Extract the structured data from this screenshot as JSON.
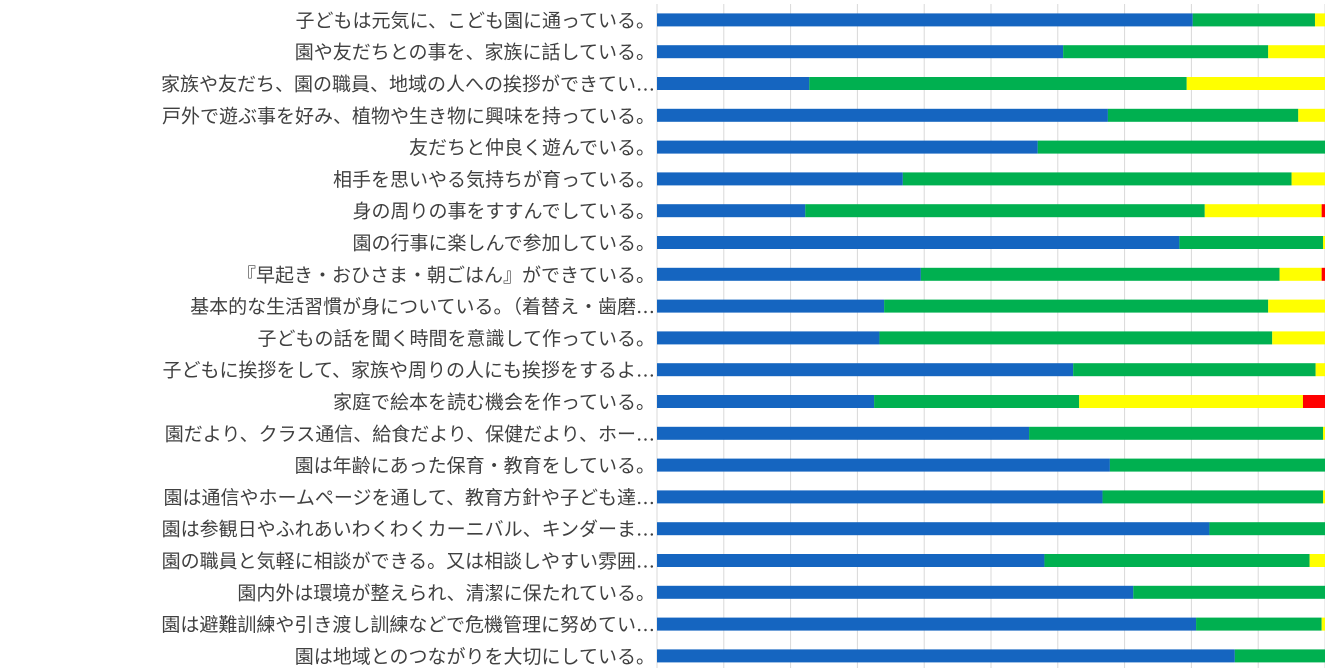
{
  "chart_data": {
    "type": "bar",
    "stacked": true,
    "orientation": "horizontal",
    "xlim": [
      0,
      100
    ],
    "grid": true,
    "legend": "none",
    "categories": [
      "子どもは元気に、こども園に通っている。",
      "園や友だちとの事を、家族に話している。",
      "家族や友だち、園の職員、地域の人への挨拶ができてい…",
      "戸外で遊ぶ事を好み、植物や生き物に興味を持っている。",
      "友だちと仲良く遊んでいる。",
      "相手を思いやる気持ちが育っている。",
      "身の周りの事をすすんでしている。",
      "園の行事に楽しんで参加している。",
      "『早起き・おひさま・朝ごはん』ができている。",
      "基本的な生活習慣が身についている。（着替え・歯磨…",
      "子どもの話を聞く時間を意識して作っている。",
      "子どもに挨拶をして、家族や周りの人にも挨拶をするよ…",
      "家庭で絵本を読む機会を作っている。",
      "園だより、クラス通信、給食だより、保健だより、ホー…",
      "園は年齢にあった保育・教育をしている。",
      "園は通信やホームページを通して、教育方針や子ども達…",
      "園は参観日やふれあいわくわくカーニバル、キンダーま…",
      "園の職員と気軽に相談ができる。又は相談しやすい雰囲…",
      "園内外は環境が整えられ、清潔に保たれている。",
      "園は避難訓練や引き渡し訓練などで危機管理に努めてい…",
      "園は地域とのつながりを大切にしている。"
    ],
    "series": [
      {
        "color": "#1565c0",
        "values": [
          80.2,
          60.8,
          22.8,
          67.5,
          57.0,
          36.8,
          22.2,
          78.2,
          39.5,
          34.0,
          33.3,
          62.3,
          32.5,
          55.7,
          67.8,
          66.7,
          82.7,
          58.0,
          71.3,
          80.7,
          86.5
        ]
      },
      {
        "color": "#00b050",
        "values": [
          18.3,
          30.7,
          56.5,
          28.5,
          43.0,
          58.2,
          59.8,
          21.5,
          53.7,
          57.5,
          58.8,
          36.3,
          30.7,
          44.0,
          32.2,
          33.0,
          17.3,
          39.7,
          28.7,
          18.8,
          13.5
        ]
      },
      {
        "color": "#ffff00",
        "values": [
          1.5,
          8.5,
          20.7,
          4.0,
          0,
          5.0,
          17.5,
          0.3,
          6.3,
          8.5,
          7.9,
          1.4,
          33.5,
          0.3,
          0,
          0.3,
          0,
          2.3,
          0,
          0.5,
          0
        ]
      },
      {
        "color": "#ff0000",
        "values": [
          0,
          0,
          0,
          0,
          0,
          0,
          0.5,
          0,
          0.5,
          0,
          0,
          0,
          3.3,
          0,
          0,
          0,
          0,
          0,
          0,
          0,
          0
        ]
      }
    ]
  }
}
